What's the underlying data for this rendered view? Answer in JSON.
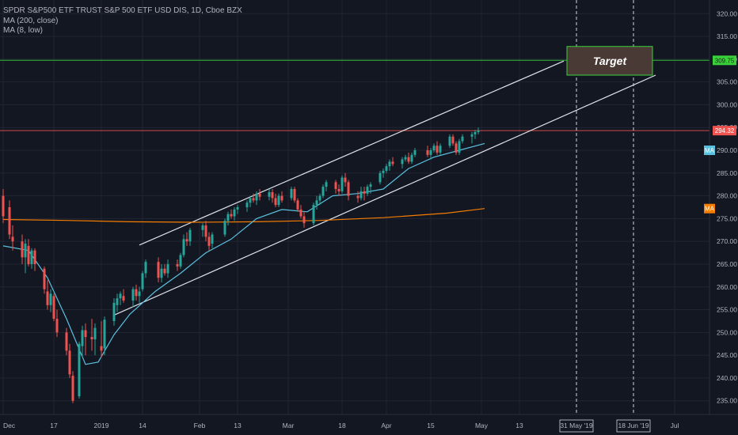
{
  "legend": {
    "symbol": "SPDR S&P500 ETF TRUST S&P 500 ETF USD DIS, 1D, Cboe BZX",
    "ma200": "MA (200, close)",
    "ma8": "MA (8, low)"
  },
  "colors": {
    "background": "#131722",
    "grid": "#232632",
    "up": "#26a69a",
    "down": "#ef5350",
    "ma200": "#f57c00",
    "ma8": "#5bc0de",
    "channel": "#e0e3eb",
    "target_line": "#3bd13b",
    "current_line": "#ef5350"
  },
  "chart_data": {
    "type": "candlestick",
    "instrument": "SPDR S&P500 ETF TRUST S&P 500 ETF USD DIS, 1D, Cboe BZX",
    "ylim": [
      232,
      323
    ],
    "y_ticks": [
      235,
      240,
      245,
      250,
      255,
      260,
      265,
      270,
      275,
      280,
      285,
      290,
      295,
      300,
      305,
      310,
      315,
      320
    ],
    "x_ticks": [
      {
        "label": "Dec",
        "day": 0
      },
      {
        "label": "17",
        "day": 16
      },
      {
        "label": "2019",
        "day": 31
      },
      {
        "label": "14",
        "day": 44
      },
      {
        "label": "Feb",
        "day": 62
      },
      {
        "label": "13",
        "day": 74
      },
      {
        "label": "Mar",
        "day": 90
      },
      {
        "label": "18",
        "day": 107
      },
      {
        "label": "Apr",
        "day": 121
      },
      {
        "label": "15",
        "day": 135
      },
      {
        "label": "May",
        "day": 151
      },
      {
        "label": "13",
        "day": 163
      },
      {
        "label": "Jul",
        "day": 212
      }
    ],
    "x_range_days": [
      0,
      222
    ],
    "price_labels": [
      {
        "value": 309.75,
        "text": "309.75",
        "color": "#3bd13b"
      },
      {
        "value": 294.32,
        "text": "294.32",
        "color": "#ef5350"
      }
    ],
    "ma_badges": [
      {
        "value": 290.0,
        "text": "MA",
        "color": "#5bc0de"
      },
      {
        "value": 277.2,
        "text": "MA",
        "color": "#f57c00"
      }
    ],
    "date_markers": [
      {
        "day": 181,
        "text": "31 May '19"
      },
      {
        "day": 199,
        "text": "18 Jun '19"
      }
    ],
    "target": {
      "label": "Target",
      "x_from_day": 178,
      "x_to_day": 205,
      "y_from": 306.5,
      "y_to": 312.8
    },
    "channel_upper": [
      {
        "day": 43,
        "value": 269.2
      },
      {
        "day": 177,
        "value": 309.6
      }
    ],
    "channel_lower": [
      {
        "day": 35,
        "value": 253.8
      },
      {
        "day": 206,
        "value": 306.5
      }
    ],
    "horizontal_lines": [
      {
        "value": 309.75,
        "color": "#3bd13b"
      },
      {
        "value": 294.32,
        "color": "#ef5350"
      }
    ],
    "ma200": [
      {
        "day": 0,
        "value": 274.8
      },
      {
        "day": 20,
        "value": 274.6
      },
      {
        "day": 40,
        "value": 274.3
      },
      {
        "day": 60,
        "value": 274.2
      },
      {
        "day": 80,
        "value": 274.3
      },
      {
        "day": 100,
        "value": 274.6
      },
      {
        "day": 120,
        "value": 275.2
      },
      {
        "day": 140,
        "value": 276.2
      },
      {
        "day": 152,
        "value": 277.2
      }
    ],
    "ma8": [
      {
        "day": 0,
        "value": 269
      },
      {
        "day": 8,
        "value": 268
      },
      {
        "day": 14,
        "value": 262
      },
      {
        "day": 20,
        "value": 253
      },
      {
        "day": 26,
        "value": 243
      },
      {
        "day": 30,
        "value": 243.5
      },
      {
        "day": 35,
        "value": 249.5
      },
      {
        "day": 40,
        "value": 254
      },
      {
        "day": 48,
        "value": 259
      },
      {
        "day": 56,
        "value": 263
      },
      {
        "day": 64,
        "value": 267.5
      },
      {
        "day": 72,
        "value": 270.5
      },
      {
        "day": 80,
        "value": 275
      },
      {
        "day": 88,
        "value": 277
      },
      {
        "day": 96,
        "value": 276.5
      },
      {
        "day": 104,
        "value": 280
      },
      {
        "day": 112,
        "value": 280.5
      },
      {
        "day": 120,
        "value": 281.5
      },
      {
        "day": 128,
        "value": 286
      },
      {
        "day": 136,
        "value": 288.5
      },
      {
        "day": 144,
        "value": 290
      },
      {
        "day": 152,
        "value": 291.5
      }
    ],
    "candles": [
      {
        "day": 0,
        "o": 280.0,
        "h": 281.5,
        "l": 274.0,
        "c": 275.5
      },
      {
        "day": 2,
        "o": 277.5,
        "h": 279.0,
        "l": 270.5,
        "c": 271.5
      },
      {
        "day": 3,
        "o": 271.0,
        "h": 273.5,
        "l": 268.0,
        "c": 270.0
      },
      {
        "day": 6,
        "o": 270.0,
        "h": 271.5,
        "l": 265.0,
        "c": 266.5
      },
      {
        "day": 7,
        "o": 266.5,
        "h": 270.5,
        "l": 263.0,
        "c": 269.5
      },
      {
        "day": 8,
        "o": 269.0,
        "h": 270.5,
        "l": 264.5,
        "c": 265.0
      },
      {
        "day": 9,
        "o": 265.0,
        "h": 268.5,
        "l": 264.0,
        "c": 268.0
      },
      {
        "day": 10,
        "o": 268.0,
        "h": 268.5,
        "l": 263.5,
        "c": 265.0
      },
      {
        "day": 13,
        "o": 264.0,
        "h": 264.5,
        "l": 258.5,
        "c": 259.5
      },
      {
        "day": 14,
        "o": 259.0,
        "h": 261.5,
        "l": 255.0,
        "c": 256.0
      },
      {
        "day": 15,
        "o": 256.0,
        "h": 259.5,
        "l": 254.5,
        "c": 258.5
      },
      {
        "day": 16,
        "o": 258.0,
        "h": 258.5,
        "l": 252.5,
        "c": 253.0
      },
      {
        "day": 17,
        "o": 253.0,
        "h": 255.0,
        "l": 249.0,
        "c": 250.0
      },
      {
        "day": 20,
        "o": 250.0,
        "h": 251.0,
        "l": 245.0,
        "c": 246.0
      },
      {
        "day": 21,
        "o": 246.0,
        "h": 247.5,
        "l": 240.0,
        "c": 240.8
      },
      {
        "day": 22,
        "o": 240.5,
        "h": 241.5,
        "l": 234.5,
        "c": 235.0
      },
      {
        "day": 24,
        "o": 236.0,
        "h": 248.0,
        "l": 235.5,
        "c": 247.5
      },
      {
        "day": 25,
        "o": 247.0,
        "h": 251.5,
        "l": 244.5,
        "c": 250.5
      },
      {
        "day": 26,
        "o": 250.5,
        "h": 252.0,
        "l": 245.0,
        "c": 249.0
      },
      {
        "day": 28,
        "o": 249.0,
        "h": 253.0,
        "l": 246.0,
        "c": 248.5
      },
      {
        "day": 29,
        "o": 248.5,
        "h": 252.0,
        "l": 245.0,
        "c": 251.0
      },
      {
        "day": 31,
        "o": 247.0,
        "h": 252.5,
        "l": 244.5,
        "c": 246.0
      },
      {
        "day": 32,
        "o": 246.5,
        "h": 253.5,
        "l": 245.0,
        "c": 252.8
      },
      {
        "day": 35,
        "o": 252.5,
        "h": 257.5,
        "l": 251.5,
        "c": 256.5
      },
      {
        "day": 36,
        "o": 256.0,
        "h": 258.5,
        "l": 254.5,
        "c": 257.5
      },
      {
        "day": 37,
        "o": 257.5,
        "h": 259.0,
        "l": 256.0,
        "c": 258.5
      },
      {
        "day": 38,
        "o": 258.0,
        "h": 259.5,
        "l": 256.5,
        "c": 257.0
      },
      {
        "day": 41,
        "o": 257.0,
        "h": 260.0,
        "l": 255.5,
        "c": 259.5
      },
      {
        "day": 42,
        "o": 259.5,
        "h": 260.5,
        "l": 257.0,
        "c": 258.0
      },
      {
        "day": 43,
        "o": 258.0,
        "h": 260.0,
        "l": 256.5,
        "c": 259.0
      },
      {
        "day": 44,
        "o": 259.5,
        "h": 263.5,
        "l": 259.0,
        "c": 263.0
      },
      {
        "day": 45,
        "o": 263.0,
        "h": 266.0,
        "l": 262.0,
        "c": 265.5
      },
      {
        "day": 49,
        "o": 265.5,
        "h": 266.5,
        "l": 261.0,
        "c": 262.0
      },
      {
        "day": 50,
        "o": 262.0,
        "h": 265.0,
        "l": 261.0,
        "c": 264.0
      },
      {
        "day": 51,
        "o": 264.0,
        "h": 265.0,
        "l": 262.5,
        "c": 263.0
      },
      {
        "day": 52,
        "o": 263.0,
        "h": 266.0,
        "l": 262.0,
        "c": 265.0
      },
      {
        "day": 55,
        "o": 265.0,
        "h": 266.0,
        "l": 263.5,
        "c": 264.5
      },
      {
        "day": 56,
        "o": 264.5,
        "h": 267.5,
        "l": 264.0,
        "c": 267.0
      },
      {
        "day": 57,
        "o": 267.0,
        "h": 271.5,
        "l": 266.5,
        "c": 270.5
      },
      {
        "day": 58,
        "o": 270.5,
        "h": 272.0,
        "l": 269.0,
        "c": 270.0
      },
      {
        "day": 59,
        "o": 270.0,
        "h": 273.0,
        "l": 269.0,
        "c": 272.5
      },
      {
        "day": 63,
        "o": 272.5,
        "h": 274.0,
        "l": 271.0,
        "c": 273.5
      },
      {
        "day": 64,
        "o": 273.5,
        "h": 274.5,
        "l": 270.0,
        "c": 271.0
      },
      {
        "day": 65,
        "o": 271.0,
        "h": 272.0,
        "l": 268.0,
        "c": 269.0
      },
      {
        "day": 66,
        "o": 269.5,
        "h": 272.0,
        "l": 268.5,
        "c": 271.5
      },
      {
        "day": 70,
        "o": 271.5,
        "h": 275.0,
        "l": 271.0,
        "c": 274.5
      },
      {
        "day": 71,
        "o": 274.5,
        "h": 276.5,
        "l": 273.5,
        "c": 276.0
      },
      {
        "day": 72,
        "o": 276.0,
        "h": 277.0,
        "l": 275.0,
        "c": 275.5
      },
      {
        "day": 73,
        "o": 275.5,
        "h": 277.5,
        "l": 274.5,
        "c": 277.0
      },
      {
        "day": 74,
        "o": 277.0,
        "h": 278.0,
        "l": 276.0,
        "c": 277.5
      },
      {
        "day": 77,
        "o": 277.5,
        "h": 279.0,
        "l": 276.5,
        "c": 278.5
      },
      {
        "day": 78,
        "o": 278.5,
        "h": 280.0,
        "l": 277.5,
        "c": 279.5
      },
      {
        "day": 79,
        "o": 279.5,
        "h": 280.5,
        "l": 278.5,
        "c": 279.0
      },
      {
        "day": 80,
        "o": 279.0,
        "h": 281.0,
        "l": 278.0,
        "c": 280.5
      },
      {
        "day": 81,
        "o": 280.5,
        "h": 281.5,
        "l": 279.0,
        "c": 279.8
      },
      {
        "day": 84,
        "o": 279.8,
        "h": 281.5,
        "l": 279.0,
        "c": 280.8
      },
      {
        "day": 85,
        "o": 280.8,
        "h": 281.5,
        "l": 278.5,
        "c": 279.5
      },
      {
        "day": 86,
        "o": 279.5,
        "h": 280.5,
        "l": 277.5,
        "c": 278.0
      },
      {
        "day": 87,
        "o": 278.0,
        "h": 280.5,
        "l": 277.5,
        "c": 280.0
      },
      {
        "day": 88,
        "o": 280.0,
        "h": 281.0,
        "l": 278.5,
        "c": 279.0
      },
      {
        "day": 91,
        "o": 279.5,
        "h": 282.0,
        "l": 279.0,
        "c": 281.5
      },
      {
        "day": 92,
        "o": 281.5,
        "h": 282.0,
        "l": 278.5,
        "c": 279.0
      },
      {
        "day": 93,
        "o": 279.0,
        "h": 279.5,
        "l": 276.5,
        "c": 277.0
      },
      {
        "day": 94,
        "o": 277.0,
        "h": 278.0,
        "l": 275.0,
        "c": 275.5
      },
      {
        "day": 95,
        "o": 275.5,
        "h": 276.5,
        "l": 273.0,
        "c": 274.0
      },
      {
        "day": 98,
        "o": 274.0,
        "h": 278.5,
        "l": 273.5,
        "c": 278.0
      },
      {
        "day": 99,
        "o": 278.0,
        "h": 280.0,
        "l": 277.0,
        "c": 279.0
      },
      {
        "day": 100,
        "o": 279.0,
        "h": 280.5,
        "l": 278.0,
        "c": 280.0
      },
      {
        "day": 101,
        "o": 280.0,
        "h": 282.5,
        "l": 279.5,
        "c": 282.0
      },
      {
        "day": 102,
        "o": 282.0,
        "h": 283.5,
        "l": 281.0,
        "c": 283.0
      },
      {
        "day": 105,
        "o": 283.0,
        "h": 283.5,
        "l": 280.5,
        "c": 281.5
      },
      {
        "day": 106,
        "o": 281.5,
        "h": 282.5,
        "l": 280.0,
        "c": 281.0
      },
      {
        "day": 107,
        "o": 281.0,
        "h": 284.5,
        "l": 280.5,
        "c": 284.0
      },
      {
        "day": 108,
        "o": 284.0,
        "h": 285.0,
        "l": 282.0,
        "c": 283.0
      },
      {
        "day": 109,
        "o": 283.0,
        "h": 283.5,
        "l": 279.0,
        "c": 280.0
      },
      {
        "day": 112,
        "o": 280.0,
        "h": 281.0,
        "l": 278.5,
        "c": 279.5
      },
      {
        "day": 113,
        "o": 279.5,
        "h": 282.0,
        "l": 279.0,
        "c": 281.0
      },
      {
        "day": 114,
        "o": 281.0,
        "h": 282.0,
        "l": 279.0,
        "c": 280.5
      },
      {
        "day": 115,
        "o": 280.5,
        "h": 282.5,
        "l": 280.0,
        "c": 282.0
      },
      {
        "day": 116,
        "o": 282.0,
        "h": 283.0,
        "l": 280.5,
        "c": 282.5
      },
      {
        "day": 119,
        "o": 283.0,
        "h": 285.5,
        "l": 282.5,
        "c": 285.0
      },
      {
        "day": 120,
        "o": 285.0,
        "h": 286.0,
        "l": 284.0,
        "c": 285.5
      },
      {
        "day": 121,
        "o": 285.5,
        "h": 287.0,
        "l": 285.0,
        "c": 286.5
      },
      {
        "day": 122,
        "o": 286.5,
        "h": 288.0,
        "l": 285.5,
        "c": 287.5
      },
      {
        "day": 123,
        "o": 287.5,
        "h": 288.5,
        "l": 286.5,
        "c": 287.0
      },
      {
        "day": 126,
        "o": 287.0,
        "h": 288.5,
        "l": 286.0,
        "c": 288.0
      },
      {
        "day": 127,
        "o": 288.0,
        "h": 289.0,
        "l": 287.5,
        "c": 288.5
      },
      {
        "day": 128,
        "o": 288.5,
        "h": 289.5,
        "l": 287.0,
        "c": 287.5
      },
      {
        "day": 129,
        "o": 287.5,
        "h": 289.5,
        "l": 287.0,
        "c": 289.0
      },
      {
        "day": 130,
        "o": 289.0,
        "h": 290.5,
        "l": 288.5,
        "c": 290.0
      },
      {
        "day": 134,
        "o": 290.0,
        "h": 291.0,
        "l": 288.5,
        "c": 289.0
      },
      {
        "day": 135,
        "o": 289.0,
        "h": 290.5,
        "l": 288.0,
        "c": 290.0
      },
      {
        "day": 136,
        "o": 290.0,
        "h": 291.5,
        "l": 289.5,
        "c": 291.0
      },
      {
        "day": 137,
        "o": 291.0,
        "h": 292.0,
        "l": 289.0,
        "c": 289.5
      },
      {
        "day": 138,
        "o": 289.5,
        "h": 291.5,
        "l": 289.0,
        "c": 291.0
      },
      {
        "day": 141,
        "o": 291.0,
        "h": 293.5,
        "l": 290.5,
        "c": 293.0
      },
      {
        "day": 142,
        "o": 293.0,
        "h": 293.5,
        "l": 291.0,
        "c": 291.5
      },
      {
        "day": 143,
        "o": 291.5,
        "h": 292.0,
        "l": 289.0,
        "c": 289.5
      },
      {
        "day": 144,
        "o": 289.5,
        "h": 292.5,
        "l": 289.0,
        "c": 292.0
      },
      {
        "day": 145,
        "o": 292.0,
        "h": 293.5,
        "l": 291.5,
        "c": 293.0
      },
      {
        "day": 148,
        "o": 293.0,
        "h": 294.0,
        "l": 291.5,
        "c": 293.5
      },
      {
        "day": 149,
        "o": 293.5,
        "h": 294.5,
        "l": 292.5,
        "c": 294.0
      },
      {
        "day": 150,
        "o": 294.0,
        "h": 295.0,
        "l": 293.5,
        "c": 294.32
      }
    ]
  }
}
